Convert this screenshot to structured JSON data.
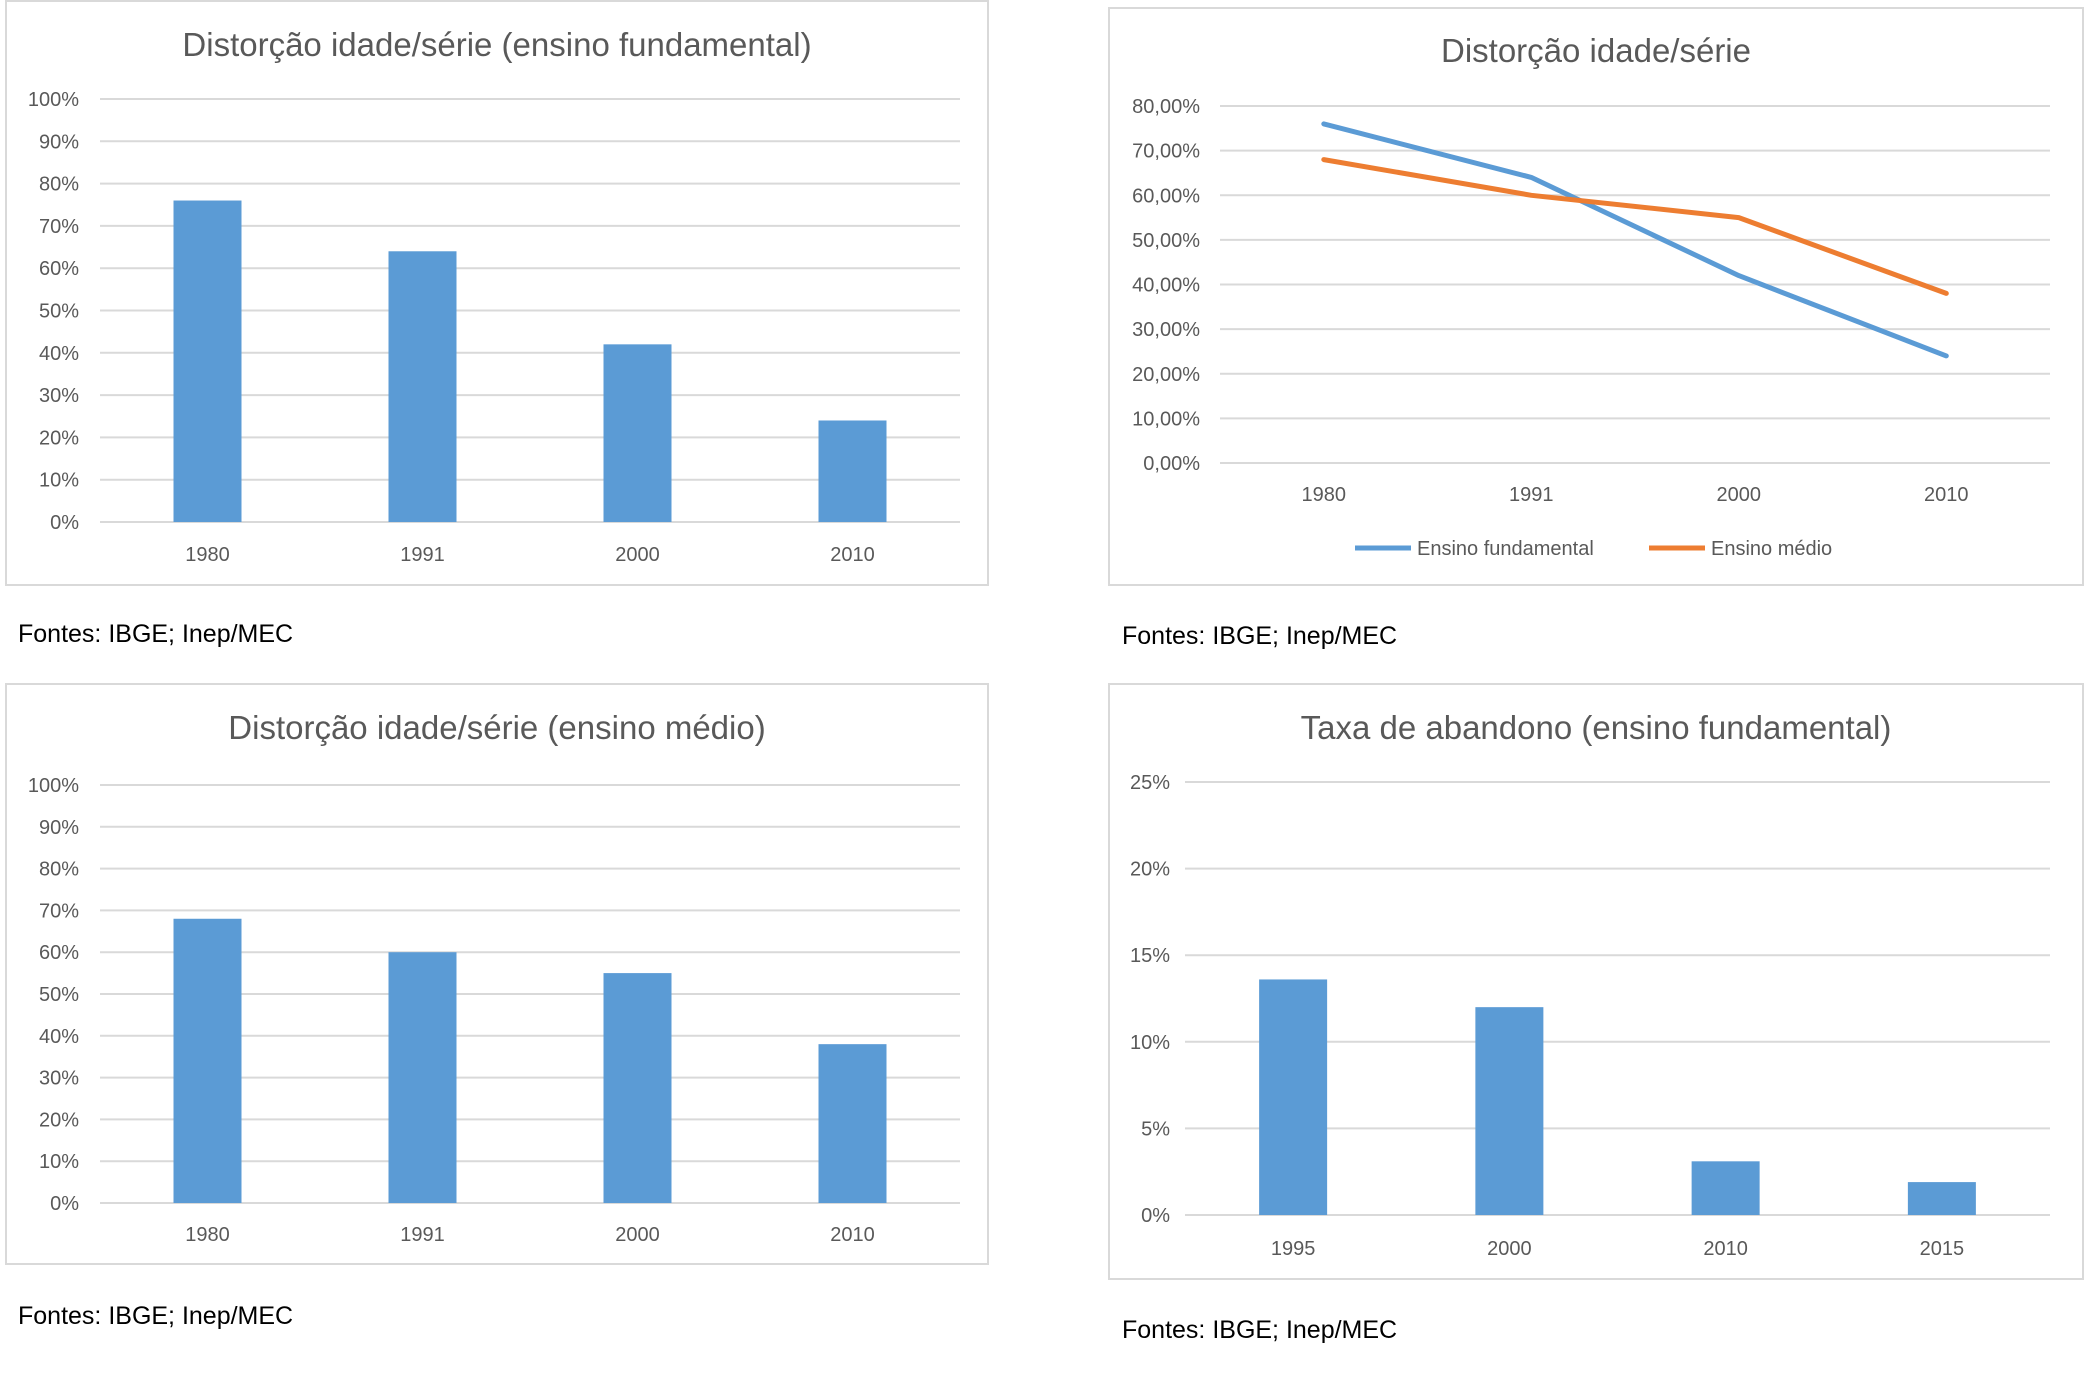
{
  "colors": {
    "blue": "#5b9bd5",
    "orange": "#ed7d31",
    "grid": "#d9d9d9",
    "text": "#595959"
  },
  "chart_data": [
    {
      "type": "bar",
      "title": "Distorção idade/série (ensino fundamental)",
      "categories": [
        "1980",
        "1991",
        "2000",
        "2010"
      ],
      "values": [
        76,
        64,
        42,
        24
      ],
      "yticks": [
        "0%",
        "10%",
        "20%",
        "30%",
        "40%",
        "50%",
        "60%",
        "70%",
        "80%",
        "90%",
        "100%"
      ],
      "ylim": [
        0,
        100
      ],
      "grid": true,
      "source": "Fontes: IBGE; Inep/MEC"
    },
    {
      "type": "line",
      "title": "Distorção idade/série",
      "categories": [
        "1980",
        "1991",
        "2000",
        "2010"
      ],
      "series": [
        {
          "name": "Ensino fundamental",
          "color": "#5b9bd5",
          "values": [
            76,
            64,
            42,
            24
          ]
        },
        {
          "name": "Ensino médio",
          "color": "#ed7d31",
          "values": [
            68,
            60,
            55,
            38
          ]
        }
      ],
      "yticks": [
        "0,00%",
        "10,00%",
        "20,00%",
        "30,00%",
        "40,00%",
        "50,00%",
        "60,00%",
        "70,00%",
        "80,00%"
      ],
      "ylim": [
        0,
        80
      ],
      "grid": true,
      "legend": "bottom",
      "source": "Fontes: IBGE; Inep/MEC"
    },
    {
      "type": "bar",
      "title": "Distorção idade/série (ensino médio)",
      "categories": [
        "1980",
        "1991",
        "2000",
        "2010"
      ],
      "values": [
        68,
        60,
        55,
        38
      ],
      "yticks": [
        "0%",
        "10%",
        "20%",
        "30%",
        "40%",
        "50%",
        "60%",
        "70%",
        "80%",
        "90%",
        "100%"
      ],
      "ylim": [
        0,
        100
      ],
      "grid": true,
      "source": "Fontes: IBGE; Inep/MEC"
    },
    {
      "type": "bar",
      "title": "Taxa de abandono (ensino fundamental)",
      "categories": [
        "1995",
        "2000",
        "2010",
        "2015"
      ],
      "values": [
        13.6,
        12.0,
        3.1,
        1.9
      ],
      "yticks": [
        "0%",
        "5%",
        "10%",
        "15%",
        "20%",
        "25%"
      ],
      "ylim": [
        0,
        25
      ],
      "grid": true,
      "source": "Fontes: IBGE; Inep/MEC"
    }
  ]
}
